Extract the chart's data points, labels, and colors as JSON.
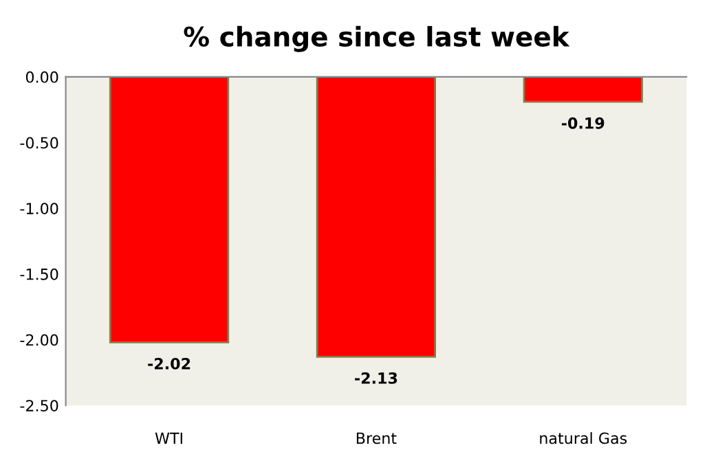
{
  "chart_data": {
    "type": "bar",
    "title": "% change since last week",
    "categories": [
      "WTI",
      "Brent",
      "natural Gas"
    ],
    "values": [
      -2.02,
      -2.13,
      -0.19
    ],
    "color": "#ff0000",
    "ylim": [
      -2.5,
      0
    ],
    "yticks": [
      {
        "value": -2.5,
        "label": "-2.50"
      },
      {
        "value": -2.0,
        "label": "-2.00"
      },
      {
        "value": -1.5,
        "label": "-1.50"
      },
      {
        "value": -1.0,
        "label": "-1.00"
      },
      {
        "value": -0.5,
        "label": "-0.50"
      },
      {
        "value": 0,
        "label": "0.00"
      }
    ],
    "data_labels": true,
    "grid": false,
    "legend": false
  }
}
